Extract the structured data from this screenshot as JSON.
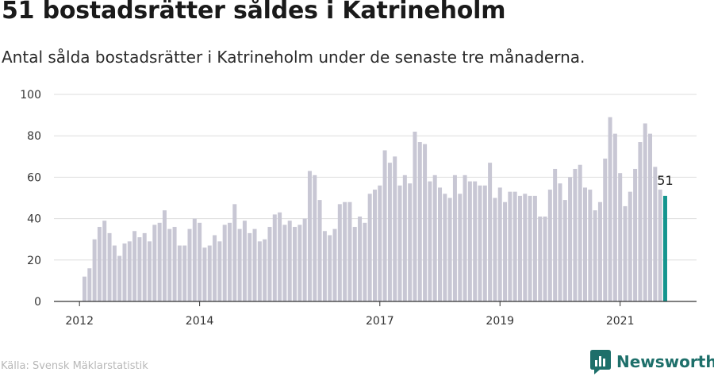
{
  "title": "51 bostadsrätter såldes i Katrineholm",
  "subtitle": "Antal sålda bostadsrätter i Katrineholm under de senaste tre månaderna.",
  "source": "Källa: Svensk Mäklarstatistik",
  "brand": {
    "name": "Newsworthy",
    "icon": "newsworthy-logo-icon"
  },
  "colors": {
    "bar": "#c8c7d4",
    "highlight": "#14958e",
    "grid": "#dddddd",
    "axis": "#333333",
    "brand": "#1d6f6a"
  },
  "chart_data": {
    "type": "bar",
    "title": "51 bostadsrätter såldes i Katrineholm",
    "xlabel": "",
    "ylabel": "",
    "ylim": [
      0,
      100
    ],
    "yticks": [
      0,
      20,
      40,
      60,
      80,
      100
    ],
    "xticks": [
      "2012",
      "2014",
      "2017",
      "2019",
      "2021"
    ],
    "grid": true,
    "legend": "none",
    "series": [
      {
        "values": [
          12,
          16,
          30,
          36,
          39,
          33,
          27,
          22,
          28,
          29,
          34,
          31,
          33,
          29,
          37,
          38,
          44,
          35,
          36,
          27,
          27,
          35,
          40,
          38,
          26,
          27,
          32,
          29,
          37,
          38,
          47,
          35,
          39,
          33,
          35,
          29,
          30,
          36,
          42,
          43,
          37,
          39,
          36,
          37,
          40,
          63,
          61,
          49,
          34,
          32,
          35,
          47,
          48,
          48,
          36,
          41,
          38,
          52,
          54,
          56,
          73,
          67,
          70,
          56,
          61,
          57,
          82,
          77,
          76,
          58,
          61,
          55,
          52,
          50,
          61,
          52,
          61,
          58,
          58,
          56,
          56,
          67,
          50,
          55,
          48,
          53,
          53,
          51,
          52,
          51,
          51,
          41,
          41,
          54,
          64,
          57,
          49,
          60,
          64,
          66,
          55,
          54,
          44,
          48,
          69,
          89,
          81,
          62,
          46,
          53,
          64,
          77,
          86,
          81,
          65,
          54,
          51
        ]
      }
    ],
    "highlight": {
      "index": 116,
      "value": 51,
      "label": "51"
    }
  }
}
